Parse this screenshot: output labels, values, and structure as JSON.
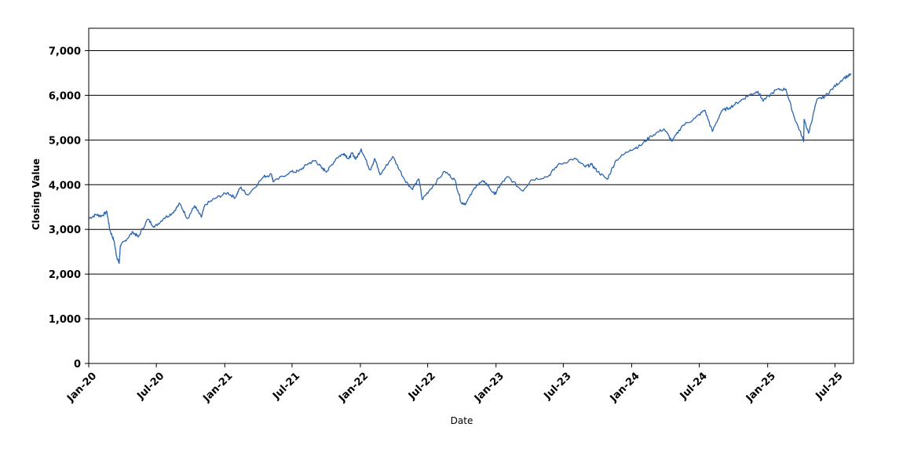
{
  "chart_data": {
    "type": "line",
    "xlabel": "Date",
    "ylabel": "Closing Value",
    "ylim": [
      0,
      7500
    ],
    "xlim": [
      "2020-01-01",
      "2025-08-20"
    ],
    "y_ticks": [
      0,
      1000,
      2000,
      3000,
      4000,
      5000,
      6000,
      7000
    ],
    "y_tick_labels": [
      "0",
      "1,000",
      "2,000",
      "3,000",
      "4,000",
      "5,000",
      "6,000",
      "7,000"
    ],
    "x_ticks": [
      "2020-01-01",
      "2020-07-01",
      "2021-01-01",
      "2021-07-01",
      "2022-01-01",
      "2022-07-01",
      "2023-01-01",
      "2023-07-01",
      "2024-01-01",
      "2024-07-01",
      "2025-01-01",
      "2025-07-01"
    ],
    "x_tick_labels": [
      "Jan-20",
      "Jul-20",
      "Jan-21",
      "Jul-21",
      "Jan-22",
      "Jul-22",
      "Jan-23",
      "Jul-23",
      "Jan-24",
      "Jul-24",
      "Jan-25",
      "Jul-25"
    ],
    "grid": "horizontal",
    "line_color": "#2b65b0",
    "series": [
      {
        "x": [
          "2020-01-02",
          "2020-01-21",
          "2020-02-04",
          "2020-02-19",
          "2020-02-27",
          "2020-03-09",
          "2020-03-16",
          "2020-03-23",
          "2020-03-26",
          "2020-04-08",
          "2020-04-29",
          "2020-05-13",
          "2020-06-08",
          "2020-06-26",
          "2020-07-21",
          "2020-08-14",
          "2020-09-02",
          "2020-09-23",
          "2020-10-12",
          "2020-10-30",
          "2020-11-09",
          "2020-12-08",
          "2021-01-08",
          "2021-01-29",
          "2021-02-12",
          "2021-03-04",
          "2021-04-16",
          "2021-05-07",
          "2021-05-12",
          "2021-06-25",
          "2021-07-19",
          "2021-08-13",
          "2021-09-02",
          "2021-09-20",
          "2021-10-04",
          "2021-10-29",
          "2021-11-18",
          "2021-12-01",
          "2021-12-10",
          "2021-12-20",
          "2022-01-03",
          "2022-01-27",
          "2022-02-09",
          "2022-02-23",
          "2022-03-29",
          "2022-04-29",
          "2022-05-20",
          "2022-06-08",
          "2022-06-16",
          "2022-07-08",
          "2022-08-16",
          "2022-09-12",
          "2022-09-30",
          "2022-10-12",
          "2022-11-10",
          "2022-12-01",
          "2022-12-28",
          "2023-01-13",
          "2023-02-02",
          "2023-03-13",
          "2023-04-06",
          "2023-05-22",
          "2023-06-15",
          "2023-07-31",
          "2023-08-28",
          "2023-09-15",
          "2023-10-02",
          "2023-10-27",
          "2023-11-20",
          "2023-12-28",
          "2024-01-24",
          "2024-02-22",
          "2024-03-28",
          "2024-04-19",
          "2024-05-15",
          "2024-06-20",
          "2024-07-16",
          "2024-08-05",
          "2024-08-30",
          "2024-09-20",
          "2024-10-18",
          "2024-11-11",
          "2024-12-06",
          "2024-12-20",
          "2025-01-23",
          "2025-02-19",
          "2025-03-13",
          "2025-04-04",
          "2025-04-08",
          "2025-04-09",
          "2025-04-21",
          "2025-05-13",
          "2025-06-03",
          "2025-06-27",
          "2025-07-25",
          "2025-08-14"
        ],
        "y": [
          3250,
          3330,
          3300,
          3390,
          2980,
          2750,
          2400,
          2240,
          2630,
          2750,
          2940,
          2830,
          3230,
          3050,
          3250,
          3370,
          3580,
          3240,
          3530,
          3270,
          3550,
          3700,
          3820,
          3710,
          3940,
          3770,
          4180,
          4230,
          4060,
          4280,
          4300,
          4470,
          4540,
          4360,
          4300,
          4600,
          4700,
          4580,
          4710,
          4570,
          4800,
          4330,
          4580,
          4220,
          4630,
          4130,
          3900,
          4120,
          3670,
          3900,
          4300,
          4110,
          3590,
          3580,
          4000,
          4080,
          3780,
          4000,
          4180,
          3860,
          4110,
          4190,
          4430,
          4590,
          4400,
          4450,
          4290,
          4120,
          4550,
          4780,
          4870,
          5090,
          5250,
          4970,
          5310,
          5490,
          5670,
          5190,
          5650,
          5720,
          5870,
          6000,
          6090,
          5870,
          6120,
          6140,
          5520,
          5070,
          4980,
          5460,
          5150,
          5890,
          5970,
          6170,
          6390,
          6470
        ]
      }
    ]
  }
}
